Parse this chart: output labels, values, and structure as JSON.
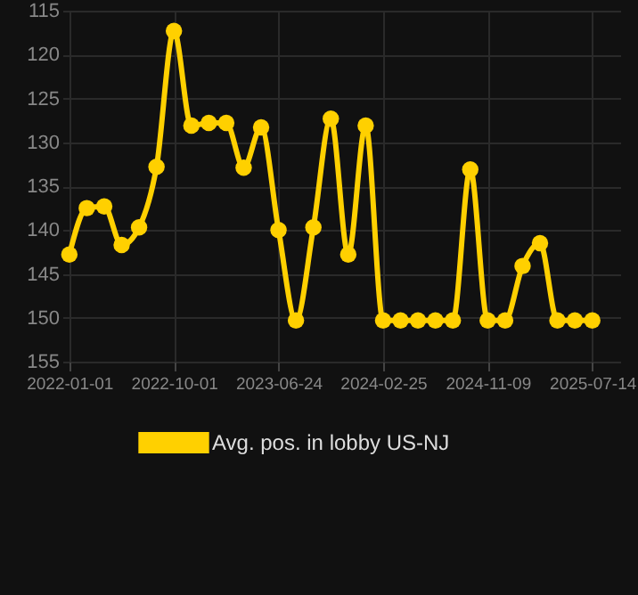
{
  "chart_data": {
    "type": "line",
    "categories": [
      "2022-01-01",
      null,
      null,
      null,
      null,
      null,
      "2022-10-01",
      null,
      null,
      null,
      null,
      null,
      "2023-06-24",
      null,
      null,
      null,
      null,
      null,
      "2024-02-25",
      null,
      null,
      null,
      null,
      null,
      "2024-11-09",
      null,
      null,
      null,
      null,
      null,
      "2025-07-14"
    ],
    "series": [
      {
        "name": "Avg. pos. in lobby US-NJ",
        "color": "#ffd000",
        "values": [
          142.8,
          137.5,
          137.3,
          141.7,
          139.7,
          132.8,
          117.3,
          128.1,
          127.8,
          127.8,
          132.9,
          128.3,
          140.0,
          150.3,
          139.7,
          127.3,
          142.8,
          128.1,
          150.3,
          150.3,
          150.3,
          150.3,
          150.3,
          133.1,
          150.3,
          150.3,
          144.1,
          141.5,
          150.3,
          150.3,
          150.3
        ]
      }
    ],
    "ylim": [
      155,
      115
    ],
    "yticks": [
      115,
      120,
      125,
      130,
      135,
      140,
      145,
      150,
      155
    ],
    "grid": true,
    "legend": "bottom",
    "marker": "circle",
    "line_style": "solid"
  }
}
